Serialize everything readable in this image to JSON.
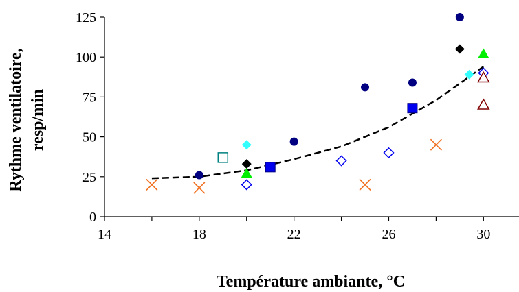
{
  "chart_data": {
    "type": "scatter",
    "title": "",
    "xlabel": "Température ambiante, °C",
    "ylabel_lines": [
      "Rythme ventilatoire,",
      "resp/min"
    ],
    "xlim": [
      14,
      31.5
    ],
    "ylim": [
      0,
      125
    ],
    "x_ticks": [
      14,
      18,
      22,
      26,
      30
    ],
    "y_ticks": [
      0,
      25,
      50,
      75,
      100,
      125
    ],
    "grid": false,
    "legend": "none",
    "series": [
      {
        "marker": "circle-filled",
        "color": "#000080",
        "points": [
          [
            18,
            26
          ],
          [
            22,
            47
          ],
          [
            25,
            81
          ],
          [
            27,
            84
          ],
          [
            29,
            125
          ]
        ]
      },
      {
        "marker": "diamond-filled",
        "color": "#000000",
        "points": [
          [
            20,
            33
          ],
          [
            29,
            105
          ]
        ]
      },
      {
        "marker": "triangle-filled",
        "color": "#00ee00",
        "points": [
          [
            20,
            27
          ],
          [
            30,
            102
          ]
        ]
      },
      {
        "marker": "diamond-filled",
        "color": "#33ffff",
        "points": [
          [
            20,
            45
          ],
          [
            29.4,
            89
          ]
        ]
      },
      {
        "marker": "square-filled",
        "color": "#0000ee",
        "points": [
          [
            21,
            31
          ],
          [
            27,
            68
          ]
        ]
      },
      {
        "marker": "square-open",
        "color": "#008080",
        "points": [
          [
            19,
            37
          ]
        ]
      },
      {
        "marker": "diamond-open",
        "color": "#0000ee",
        "points": [
          [
            20,
            20
          ],
          [
            24,
            35
          ],
          [
            26,
            40
          ],
          [
            30,
            90
          ]
        ]
      },
      {
        "marker": "triangle-open",
        "color": "#800000",
        "points": [
          [
            30,
            87
          ],
          [
            30,
            70
          ]
        ]
      },
      {
        "marker": "cross",
        "color": "#f07020",
        "points": [
          [
            16,
            20
          ],
          [
            18,
            18
          ],
          [
            25,
            20
          ],
          [
            28,
            45
          ]
        ]
      }
    ],
    "trendline": {
      "style": "dashed",
      "color": "#000000",
      "points": [
        [
          16,
          24
        ],
        [
          18,
          25
        ],
        [
          20,
          29
        ],
        [
          22,
          36
        ],
        [
          24,
          44
        ],
        [
          26,
          56
        ],
        [
          28,
          73
        ],
        [
          30,
          94
        ]
      ]
    }
  }
}
